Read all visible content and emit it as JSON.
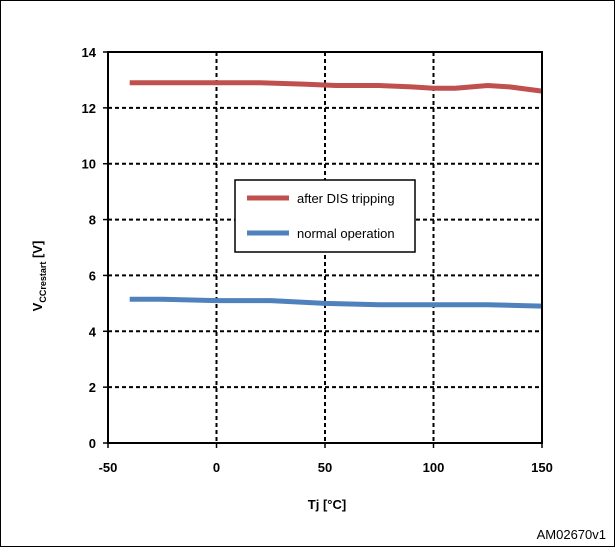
{
  "chart_data": {
    "type": "line",
    "title": "",
    "xlabel": "Tj [°C]",
    "ylabel": {
      "main": "V",
      "subscript": "CCrestart",
      "suffix": " [V]"
    },
    "xlim": [
      -50,
      150
    ],
    "ylim": [
      0,
      14
    ],
    "xticks": [
      -50,
      0,
      50,
      100,
      150
    ],
    "yticks": [
      0,
      2,
      4,
      6,
      8,
      10,
      12,
      14
    ],
    "grid": true,
    "legend_position": "center",
    "series": [
      {
        "name": "after DIS tripping",
        "color": "#c0504d",
        "x": [
          -40,
          -25,
          0,
          20,
          40,
          55,
          75,
          90,
          100,
          110,
          125,
          135,
          150
        ],
        "y": [
          12.9,
          12.9,
          12.9,
          12.9,
          12.85,
          12.8,
          12.8,
          12.75,
          12.7,
          12.7,
          12.8,
          12.75,
          12.6
        ]
      },
      {
        "name": "normal operation",
        "color": "#4f81bd",
        "x": [
          -40,
          -25,
          0,
          25,
          50,
          75,
          100,
          125,
          150
        ],
        "y": [
          5.15,
          5.15,
          5.1,
          5.1,
          5.0,
          4.95,
          4.95,
          4.95,
          4.9
        ]
      }
    ]
  },
  "figure_id": "AM02670v1"
}
